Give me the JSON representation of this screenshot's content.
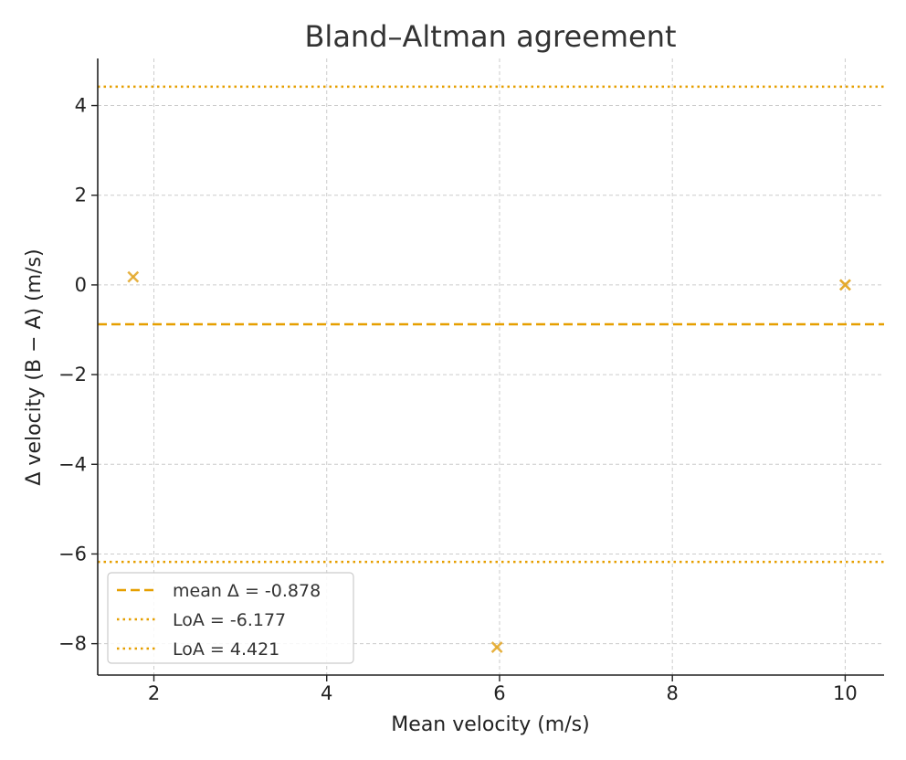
{
  "chart_data": {
    "type": "scatter",
    "title": "Bland–Altman agreement",
    "xlabel": "Mean velocity (m/s)",
    "ylabel": "Δ velocity (B − A) (m/s)",
    "xlim": [
      1.35,
      10.45
    ],
    "ylim": [
      -8.7,
      5.05
    ],
    "x_ticks": [
      2,
      4,
      6,
      8,
      10
    ],
    "y_ticks": [
      -8,
      -6,
      -4,
      -2,
      0,
      2,
      4
    ],
    "x_tick_labels": [
      "2",
      "4",
      "6",
      "8",
      "10"
    ],
    "y_tick_labels": [
      "−8",
      "−6",
      "−4",
      "−2",
      "0",
      "2",
      "4"
    ],
    "grid": true,
    "points": [
      {
        "x": 1.76,
        "y": 0.18
      },
      {
        "x": 5.97,
        "y": -8.08
      },
      {
        "x": 10.0,
        "y": 0.0
      },
      {
        "x": 10.0,
        "y": 0.0
      }
    ],
    "marker": "x",
    "marker_color": "#e3a82b",
    "reference_lines": [
      {
        "label": "mean Δ = -0.878",
        "y": -0.878,
        "style": "dashed",
        "color": "#e69f00"
      },
      {
        "label": "LoA = -6.177",
        "y": -6.177,
        "style": "dotted",
        "color": "#e69f00"
      },
      {
        "label": "LoA = 4.421",
        "y": 4.421,
        "style": "dotted",
        "color": "#e69f00"
      }
    ],
    "legend_position": "lower-left"
  }
}
